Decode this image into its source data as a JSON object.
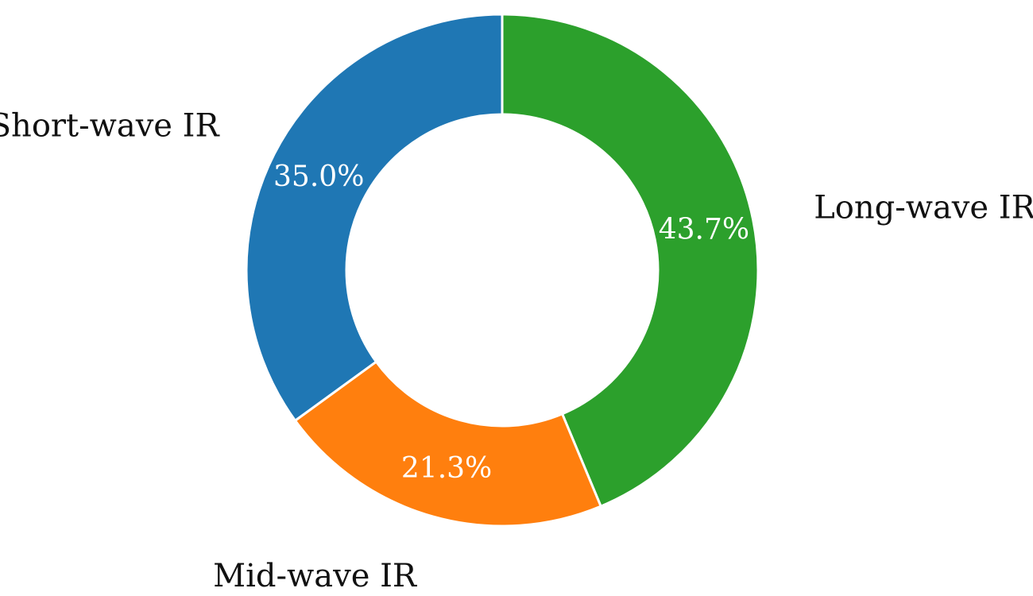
{
  "chart_data": {
    "type": "pie",
    "variant": "donut",
    "title": "",
    "categories": [
      "Long-wave IR",
      "Mid-wave IR",
      "Short-wave IR"
    ],
    "values": [
      43.7,
      21.3,
      35.0
    ],
    "value_labels": [
      "43.7%",
      "21.3%",
      "35.0%"
    ],
    "colors": [
      "#2ca02c",
      "#ff7f0e",
      "#1f77b4"
    ],
    "start_position": "top",
    "direction": "clockwise",
    "legend": "none"
  }
}
